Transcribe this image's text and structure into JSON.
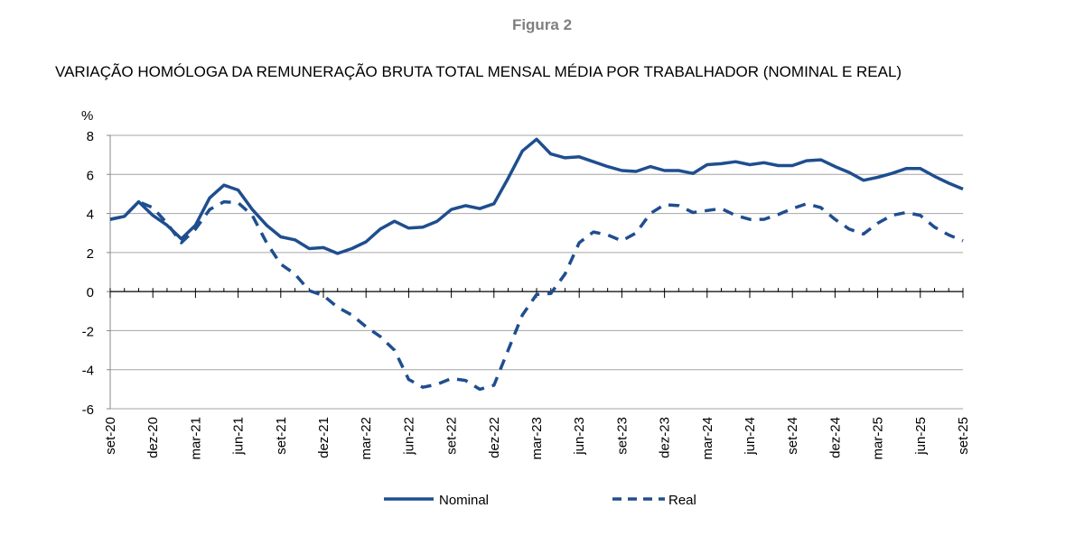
{
  "figure_label": "Figura 2",
  "chart_data": {
    "type": "line",
    "title": "VARIAÇÃO HOMÓLOGA DA REMUNERAÇÃO BRUTA TOTAL MENSAL MÉDIA POR TRABALHADOR (NOMINAL E REAL)",
    "ylabel": "%",
    "ylim": [
      -6,
      8
    ],
    "yticks": [
      "8",
      "6",
      "4",
      "2",
      "0",
      "-2",
      "-4",
      "-6"
    ],
    "x_start": "set-20",
    "x_end": "set-25",
    "xtick_labels": [
      "set-20",
      "dez-20",
      "mar-21",
      "jun-21",
      "set-21",
      "dez-21",
      "mar-22",
      "jun-22",
      "set-22",
      "dez-22",
      "mar-23",
      "jun-23",
      "set-23",
      "dez-23",
      "mar-24",
      "jun-24",
      "set-24",
      "dez-24",
      "mar-25",
      "jun-25",
      "set-25"
    ],
    "grid": true,
    "legend": "bottom",
    "color": "#1f4e8f",
    "series": [
      {
        "name": "Nominal",
        "style": "solid",
        "values": [
          3.7,
          3.85,
          4.6,
          3.9,
          3.4,
          2.7,
          3.4,
          4.8,
          5.45,
          5.2,
          4.2,
          3.4,
          2.8,
          2.65,
          2.2,
          2.25,
          1.95,
          2.2,
          2.55,
          3.2,
          3.6,
          3.25,
          3.3,
          3.6,
          4.2,
          4.4,
          4.25,
          4.5,
          5.8,
          7.2,
          7.8,
          7.05,
          6.85,
          6.9,
          6.65,
          6.4,
          6.2,
          6.15,
          6.4,
          6.2,
          6.2,
          6.05,
          6.5,
          6.55,
          6.65,
          6.5,
          6.6,
          6.45,
          6.45,
          6.7,
          6.75,
          6.4,
          6.1,
          5.7,
          5.85,
          6.05,
          6.3,
          6.3,
          5.9,
          5.55,
          5.25
        ]
      },
      {
        "name": "Real",
        "style": "dashed",
        "values": [
          3.7,
          3.85,
          4.6,
          4.3,
          3.5,
          2.5,
          3.2,
          4.2,
          4.6,
          4.55,
          3.9,
          2.5,
          1.4,
          0.9,
          0.05,
          -0.2,
          -0.8,
          -1.2,
          -1.8,
          -2.3,
          -3.0,
          -4.5,
          -4.9,
          -4.75,
          -4.45,
          -4.55,
          -5.0,
          -4.8,
          -3.0,
          -1.2,
          -0.15,
          -0.1,
          0.9,
          2.5,
          3.05,
          2.9,
          2.6,
          3.0,
          4.0,
          4.45,
          4.4,
          4.05,
          4.15,
          4.25,
          3.9,
          3.7,
          3.7,
          3.95,
          4.25,
          4.5,
          4.3,
          3.7,
          3.2,
          2.95,
          3.5,
          3.9,
          4.05,
          3.9,
          3.3,
          2.9,
          2.6
        ]
      }
    ]
  }
}
